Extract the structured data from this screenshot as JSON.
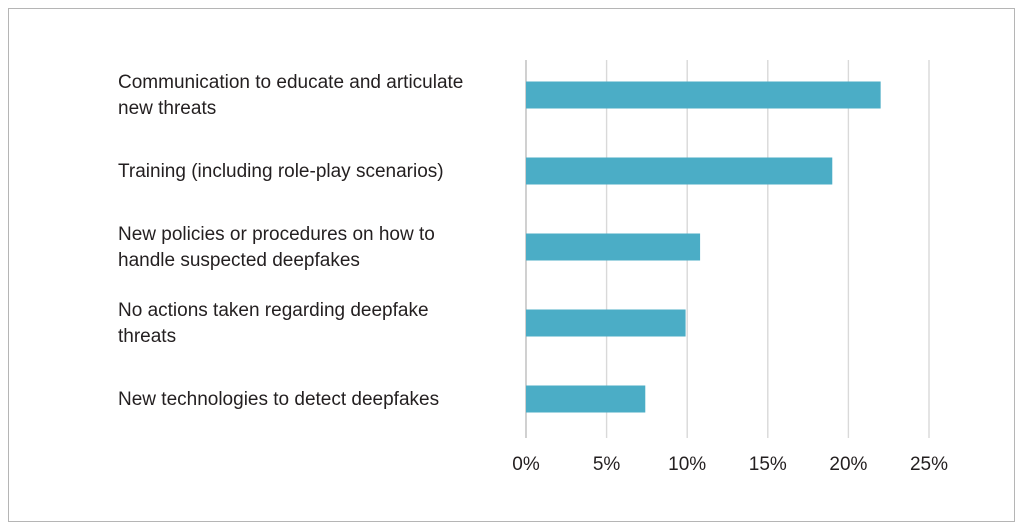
{
  "chart_data": {
    "type": "bar",
    "orientation": "horizontal",
    "title": "",
    "xlabel": "",
    "ylabel": "",
    "categories": [
      [
        "Communication to educate and articulate",
        "new threats"
      ],
      [
        "Training (including role-play scenarios)"
      ],
      [
        "New policies or procedures on how to",
        "handle suspected deepfakes"
      ],
      [
        "No actions taken regarding deepfake",
        "threats"
      ],
      [
        "New technologies to detect deepfakes"
      ]
    ],
    "values": [
      22,
      19,
      10.8,
      9.9,
      7.4
    ],
    "xlim": [
      0,
      25
    ],
    "ticks": [
      0,
      5,
      10,
      15,
      20,
      25
    ],
    "tick_labels": [
      "0%",
      "5%",
      "10%",
      "15%",
      "20%",
      "25%"
    ],
    "grid": true,
    "bar_color": "#4badc6"
  }
}
